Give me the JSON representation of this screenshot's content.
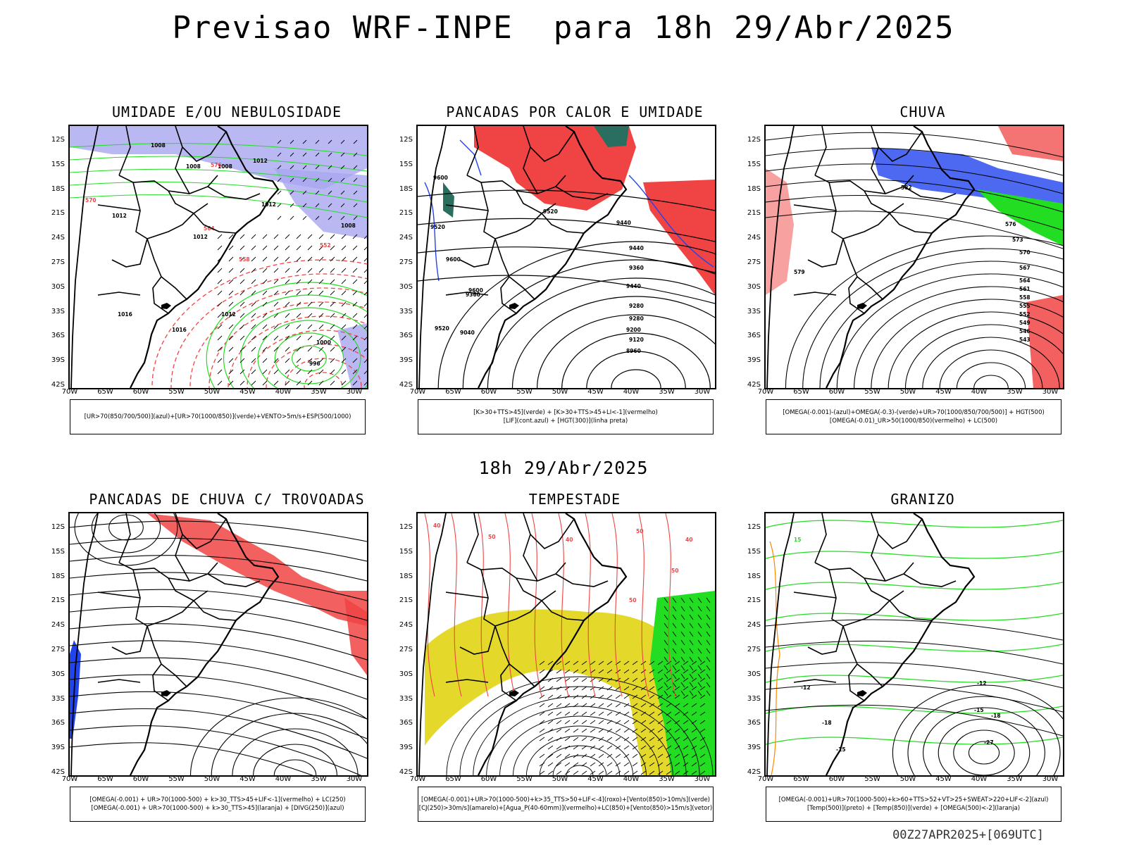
{
  "header": {
    "title": "Previsao WRF-INPE  para 18h 29/Abr/2025"
  },
  "subtitle": "18h 29/Abr/2025",
  "footer": "00Z27APR2025+[069UTC]",
  "axes": {
    "lat_labels": [
      "12S",
      "15S",
      "18S",
      "21S",
      "24S",
      "27S",
      "30S",
      "33S",
      "36S",
      "39S",
      "42S"
    ],
    "lon_labels": [
      "70W",
      "65W",
      "60W",
      "55W",
      "50W",
      "45W",
      "40W",
      "35W",
      "30W"
    ]
  },
  "colors": {
    "lavender": "#a9a6f0",
    "green": "#22dd22",
    "red": "#f04444",
    "blue": "#2244ee",
    "teal": "#2a6e60",
    "yellow": "#e4d82a",
    "orange": "#ff8800"
  },
  "panels": [
    {
      "title": "UMIDADE E/OU NEBULOSIDADE",
      "legend": [
        "[UR>70(850/700/500)](azul)+[UR>70(1000/850)](verde)+VENTO>5m/s+ESP(500/1000)"
      ],
      "contour_labels": [
        "1008",
        "1008",
        "1008",
        "1012",
        "1012",
        "1012",
        "1012",
        "1008",
        "1012",
        "1016",
        "1016",
        "1000",
        "996",
        "570",
        "576",
        "564",
        "558",
        "552"
      ]
    },
    {
      "title": "PANCADAS POR CALOR E UMIDADE",
      "legend": [
        "[K>30+TTS>45](verde) + [K>30+TTS>45+LI<-1](vermelho)",
        "[LIF](cont.azul) + [HGT(300)](linha preta)"
      ],
      "contour_labels": [
        "9600",
        "9520",
        "9440",
        "9520",
        "9600",
        "9600",
        "9520",
        "9440",
        "9360",
        "9440",
        "9360",
        "9280",
        "9280",
        "9200",
        "9120",
        "9040",
        "8960"
      ]
    },
    {
      "title": "CHUVA",
      "legend": [
        "[OMEGA(-0.001)-(azul)+OMEGA(-0.3)-(verde)+UR>70(1000/850/700/500)] + HGT(500)",
        "[OMEGA(-0.01)_UR>50(1000/850)(vermelho) + LC(500)"
      ],
      "contour_labels": [
        "582",
        "579",
        "576",
        "573",
        "570",
        "567",
        "564",
        "561",
        "558",
        "555",
        "552",
        "549",
        "546",
        "543"
      ]
    },
    {
      "title": "PANCADAS DE CHUVA C/ TROVOADAS",
      "legend": [
        "[OMEGA(-0.001) + UR>70(1000-500) + k>30_TTS>45+LIF<-1](vermelho) + LC(250)",
        "[OMEGA(-0.001) + UR>70(1000-500) + k>30_TTS>45](laranja) + [DIVG(250)](azul)"
      ],
      "contour_labels": []
    },
    {
      "title": "TEMPESTADE",
      "legend": [
        "[OMEGA(-0.001)+UR>70(1000-500)+k>35_TTS>50+LIF<-4](roxo)+[Vento(850)>10m/s](verde)",
        "[CJ(250)>30m/s](amarelo)+[Agua_P(40-60mm)](vermelho)+LC(850)+[Vento(850)>15m/s](vetor)"
      ],
      "contour_labels": [
        "50",
        "40",
        "50",
        "50",
        "40",
        "50",
        "40"
      ]
    },
    {
      "title": "GRANIZO",
      "legend": [
        "[OMEGA(-0.001)+UR>70(1000-500)+k>60+TTS>52+VT>25+SWEAT>220+LIF<-2](azul)",
        "[Temp(500)](preto) + [Temp(850)](verde) + [OMEGA(500)<-2](laranja)"
      ],
      "contour_labels": [
        "15",
        "-12",
        "-12",
        "-15",
        "-15",
        "-18",
        "-18",
        "-27"
      ]
    }
  ]
}
